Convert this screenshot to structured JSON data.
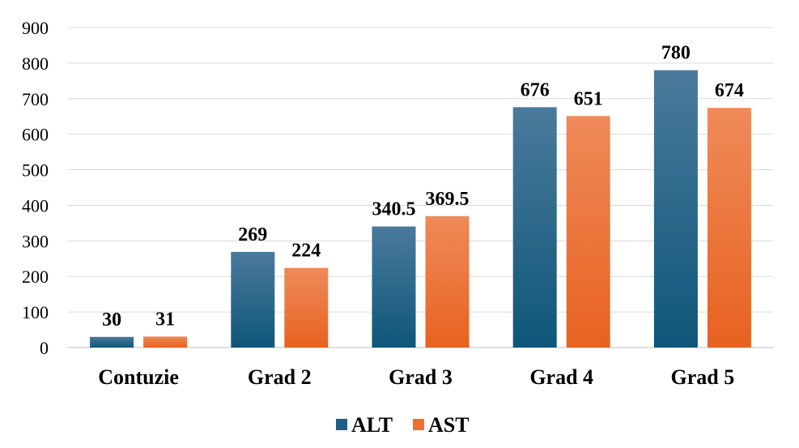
{
  "chart_data": {
    "type": "bar",
    "title": "",
    "xlabel": "",
    "ylabel": "",
    "categories": [
      "Contuzie",
      "Grad 2",
      "Grad 3",
      "Grad 4",
      "Grad 5"
    ],
    "series": [
      {
        "name": "ALT",
        "values": [
          30,
          269,
          340.5,
          676,
          780
        ],
        "color": "#1F5F85"
      },
      {
        "name": "AST",
        "values": [
          31,
          224,
          369.5,
          651,
          674
        ],
        "color": "#ED7031"
      }
    ],
    "data_labels": [
      [
        "30",
        "269",
        "340.5",
        "676",
        "780"
      ],
      [
        "31",
        "224",
        "369.5",
        "651",
        "674"
      ]
    ],
    "ylim": [
      0,
      900
    ],
    "yticks": [
      "0",
      "100",
      "200",
      "300",
      "400",
      "500",
      "600",
      "700",
      "800",
      "900"
    ],
    "grid": true,
    "legend": "bottom-center"
  }
}
